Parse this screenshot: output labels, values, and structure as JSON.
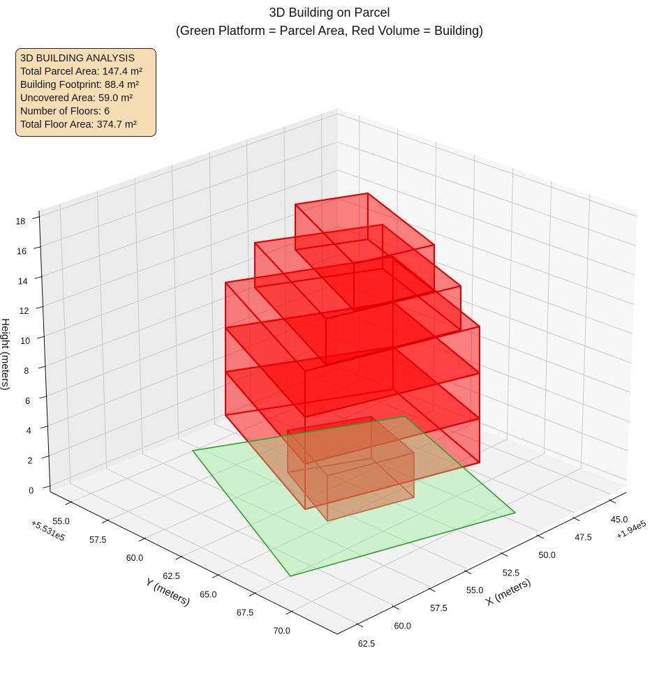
{
  "chart_data": {
    "type": "3d-polygons",
    "title": "3D Building on Parcel",
    "subtitle": "(Green Platform = Parcel Area, Red Volume = Building)",
    "xlabel": "X (meters)",
    "ylabel": "Y (meters)",
    "zlabel": "Height (meters)",
    "x_offset_label": "+1.94e5",
    "y_offset_label": "+5.531e5",
    "x_ticks": [
      45.0,
      47.5,
      50.0,
      52.5,
      55.0,
      57.5,
      60.0,
      62.5
    ],
    "x_tick_labels": [
      "45.0",
      "47.5",
      "50.0",
      "52.5",
      "55.0",
      "57.5",
      "60.0",
      "62.5"
    ],
    "y_ticks": [
      55.0,
      57.5,
      60.0,
      62.5,
      65.0,
      67.5,
      70.0
    ],
    "y_tick_labels": [
      "55.0",
      "57.5",
      "60.0",
      "62.5",
      "65.0",
      "67.5",
      "70.0"
    ],
    "z_ticks": [
      0,
      2,
      4,
      6,
      8,
      10,
      12,
      14,
      16,
      18
    ],
    "z_tick_labels": [
      "0",
      "2",
      "4",
      "6",
      "8",
      "10",
      "12",
      "14",
      "16",
      "18"
    ],
    "xlim": [
      43.9,
      63.9
    ],
    "ylim": [
      53.6,
      73.1
    ],
    "zlim": [
      -0.4,
      18.4
    ],
    "grid": true,
    "parcel": {
      "area_m2": 147.4,
      "fill_color": "#90ee90",
      "edge_color": "#2ca02c"
    },
    "building": {
      "floors": 6,
      "footprint_m2": 88.4,
      "total_floor_area_m2": 374.7,
      "fill_color": "#ff0000",
      "edge_color": "#e00000"
    },
    "uncovered_area_m2": 59.0
  },
  "info_box": {
    "heading": "3D BUILDING ANALYSIS",
    "lines": [
      "Total Parcel Area: 147.4 m²",
      "Building Footprint: 88.4 m²",
      "Uncovered Area: 59.0 m²",
      "Number of Floors: 6",
      "Total Floor Area: 374.7 m²"
    ],
    "background": "#f5deb3"
  }
}
